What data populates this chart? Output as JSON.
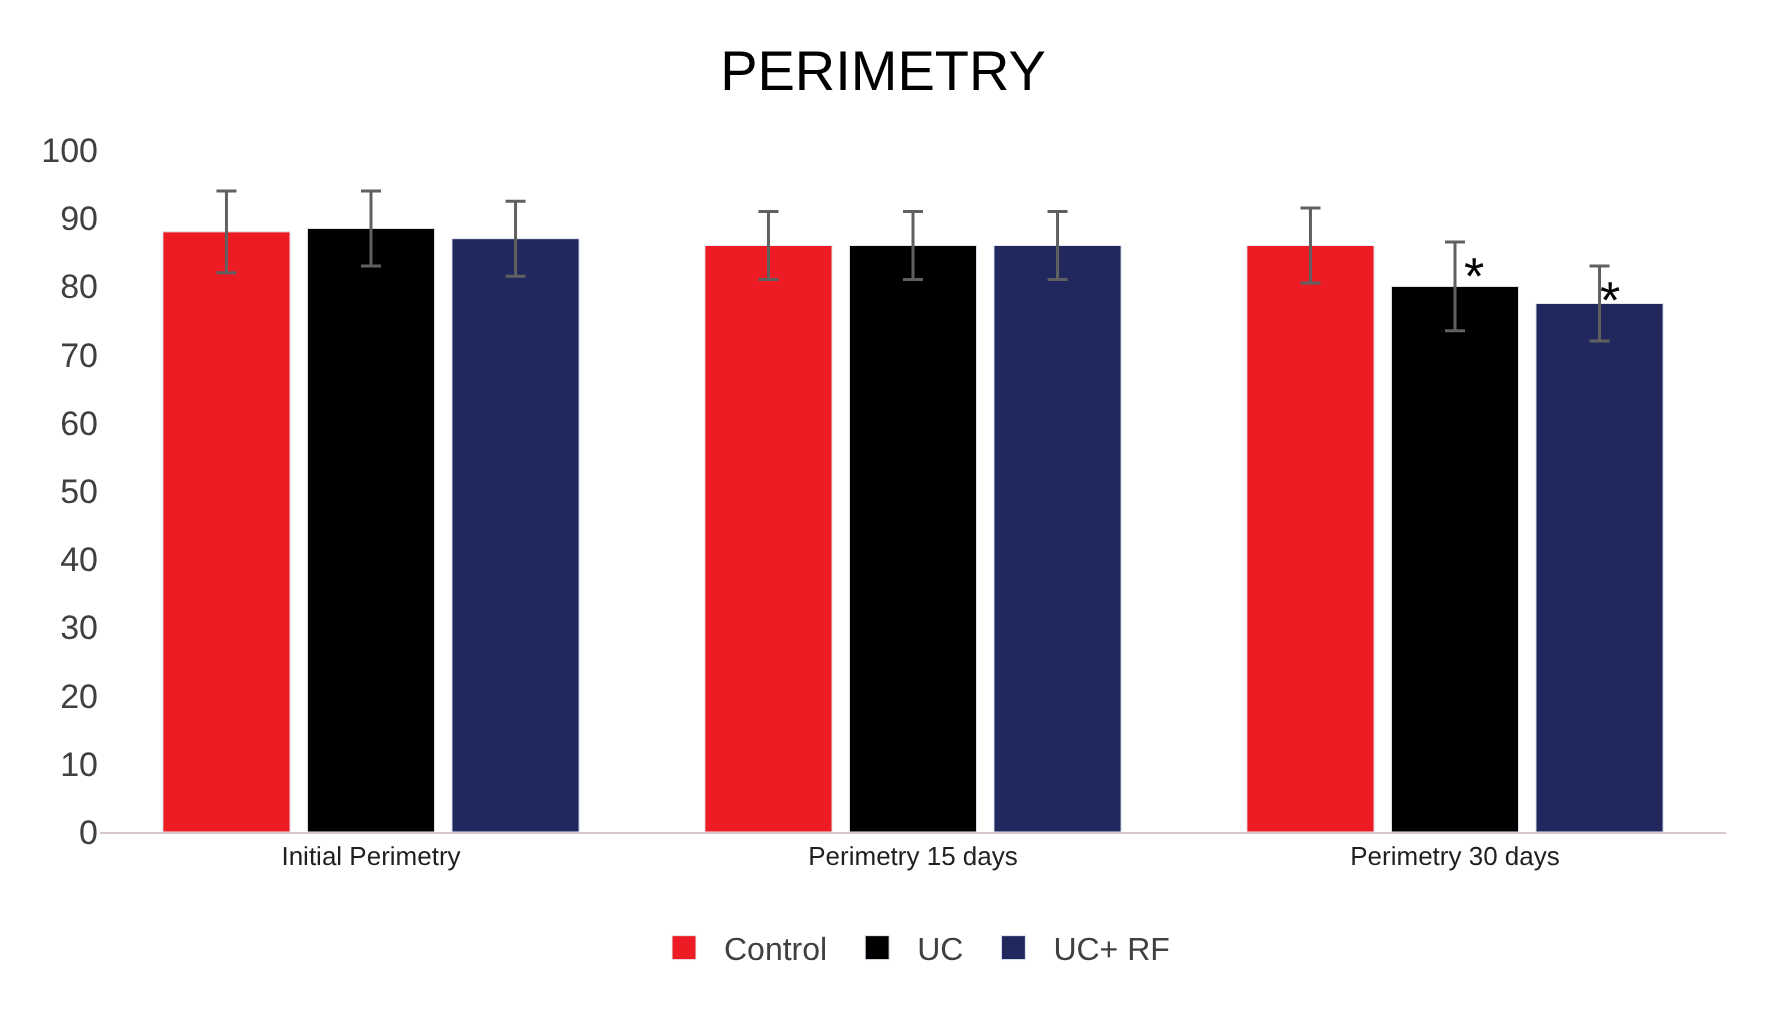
{
  "chart_data": {
    "type": "bar",
    "title": "PERIMETRY",
    "categories": [
      "Initial Perimetry",
      "Perimetry 15 days",
      "Perimetry 30 days"
    ],
    "series": [
      {
        "name": "Control",
        "color": "#ed1c24",
        "values": [
          88,
          86,
          86
        ],
        "errors": [
          6,
          5,
          5.5
        ]
      },
      {
        "name": "UC",
        "color": "#000000",
        "values": [
          88.5,
          86,
          80
        ],
        "errors": [
          5.5,
          5,
          6.5
        ]
      },
      {
        "name": "UC+ RF",
        "color": "#21285e",
        "values": [
          87,
          86,
          77.5
        ],
        "errors": [
          5.5,
          5,
          5.5
        ]
      }
    ],
    "ylim": [
      0,
      100
    ],
    "yticks": [
      0,
      10,
      20,
      30,
      40,
      50,
      60,
      70,
      80,
      90,
      100
    ],
    "annotations": [
      "*",
      "*"
    ],
    "legend": "bottom",
    "grid": false
  }
}
